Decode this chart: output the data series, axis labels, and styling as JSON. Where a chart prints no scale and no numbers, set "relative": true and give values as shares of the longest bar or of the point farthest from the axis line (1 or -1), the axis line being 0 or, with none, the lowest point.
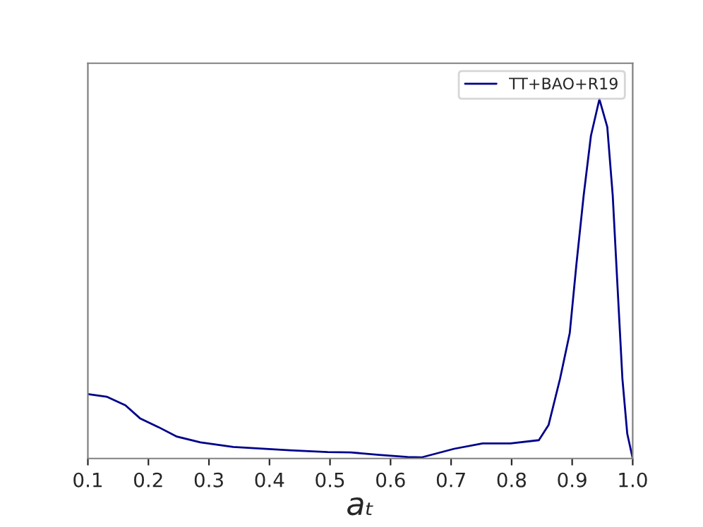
{
  "chart_data": {
    "type": "line",
    "xlabel": "aₜ",
    "relative": true,
    "xlim": [
      0.1,
      1.0
    ],
    "xticks": [
      0.1,
      0.2,
      0.3,
      0.4,
      0.5,
      0.6,
      0.7,
      0.8,
      0.9,
      {
        "value": 1.0,
        "label": "1.0"
      }
    ],
    "legend": "top right",
    "grid": false,
    "series": [
      {
        "name": "TT+BAO+R19",
        "color": "#00008b",
        "x": [
          0.1,
          0.131,
          0.162,
          0.186,
          0.217,
          0.247,
          0.286,
          0.34,
          0.434,
          0.496,
          0.534,
          0.581,
          0.628,
          0.651,
          0.705,
          0.752,
          0.798,
          0.845,
          0.861,
          0.88,
          0.896,
          0.907,
          0.919,
          0.931,
          0.945,
          0.958,
          0.967,
          0.975,
          0.983,
          0.991,
          1.0
        ],
        "values": [
          0.179,
          0.172,
          0.148,
          0.112,
          0.087,
          0.061,
          0.045,
          0.032,
          0.023,
          0.018,
          0.017,
          0.01,
          0.004,
          0.003,
          0.027,
          0.042,
          0.042,
          0.051,
          0.093,
          0.222,
          0.349,
          0.54,
          0.732,
          0.898,
          1.0,
          0.923,
          0.732,
          0.476,
          0.222,
          0.069,
          0.0
        ]
      }
    ]
  }
}
